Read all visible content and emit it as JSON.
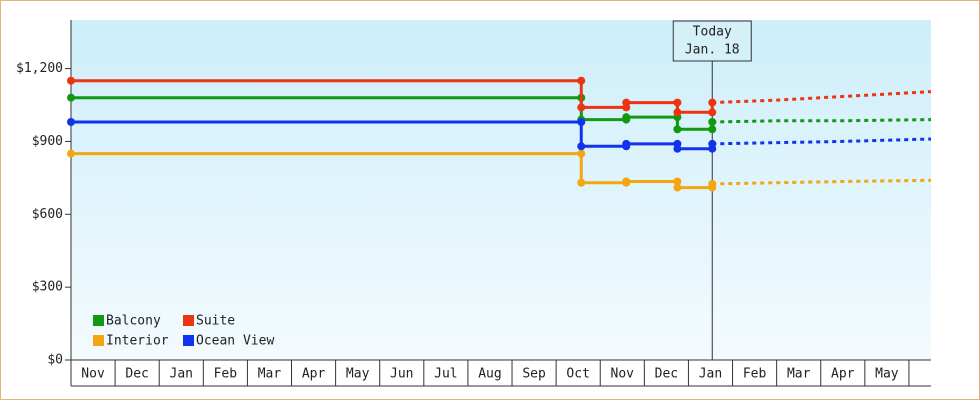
{
  "chart_data": {
    "type": "line",
    "xlim": [
      0,
      19.5
    ],
    "ylim": [
      0,
      1400
    ],
    "yticks": [
      {
        "value": 0,
        "label": "$0"
      },
      {
        "value": 300,
        "label": "$300"
      },
      {
        "value": 600,
        "label": "$600"
      },
      {
        "value": 900,
        "label": "$900"
      },
      {
        "value": 1200,
        "label": "$1,200"
      }
    ],
    "month_labels": [
      "Nov",
      "Dec",
      "Jan",
      "Feb",
      "Mar",
      "Apr",
      "May",
      "Jun",
      "Jul",
      "Aug",
      "Sep",
      "Oct",
      "Nov",
      "Dec",
      "Jan",
      "Feb",
      "Mar",
      "Apr",
      "May"
    ],
    "annotation": {
      "x": 14.54,
      "lines": [
        "Today",
        "Jan. 18"
      ]
    },
    "legend": "lower left",
    "series": [
      {
        "name": "Balcony",
        "color": "#119911",
        "x": [
          0,
          11.57,
          11.57,
          12.59,
          12.59,
          13.75,
          13.75,
          14.54,
          14.54
        ],
        "values": [
          1080,
          1080,
          990,
          990,
          1000,
          1000,
          950,
          950,
          980
        ],
        "forecast_x": [
          14.54,
          16,
          17.5,
          19.5
        ],
        "forecast_values": [
          980,
          985,
          985,
          990
        ]
      },
      {
        "name": "Suite",
        "color": "#ee3311",
        "x": [
          0,
          11.57,
          11.57,
          12.59,
          12.59,
          13.75,
          13.75,
          14.54,
          14.54
        ],
        "values": [
          1150,
          1150,
          1040,
          1040,
          1060,
          1060,
          1020,
          1020,
          1060
        ],
        "forecast_x": [
          14.54,
          16,
          17.5,
          19.5
        ],
        "forecast_values": [
          1060,
          1070,
          1085,
          1105
        ]
      },
      {
        "name": "Interior",
        "color": "#f5a511",
        "x": [
          0,
          11.57,
          11.57,
          12.59,
          12.59,
          13.75,
          13.75,
          14.54,
          14.54
        ],
        "values": [
          850,
          850,
          730,
          730,
          735,
          735,
          710,
          710,
          725
        ],
        "forecast_x": [
          14.54,
          16,
          17.5,
          19.5
        ],
        "forecast_values": [
          725,
          730,
          735,
          740
        ]
      },
      {
        "name": "Ocean View",
        "color": "#1133ee",
        "x": [
          0,
          11.57,
          11.57,
          12.59,
          12.59,
          13.75,
          13.75,
          14.54,
          14.54
        ],
        "values": [
          980,
          980,
          880,
          880,
          890,
          890,
          870,
          870,
          890
        ],
        "forecast_x": [
          14.54,
          16,
          17.5,
          19.5
        ],
        "forecast_values": [
          890,
          895,
          900,
          910
        ]
      }
    ]
  }
}
